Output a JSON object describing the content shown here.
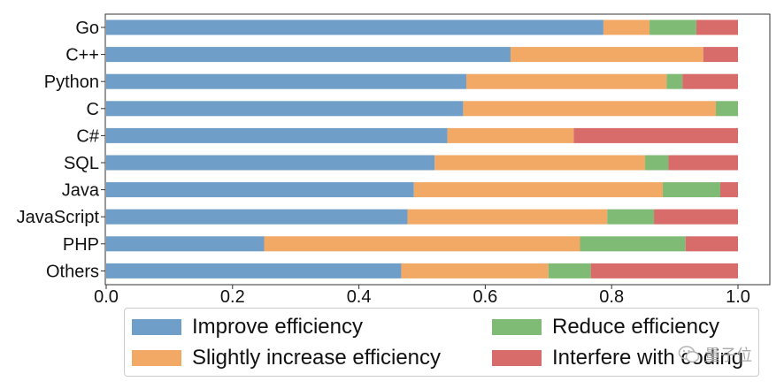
{
  "chart_data": {
    "type": "bar",
    "orientation": "horizontal",
    "stacked": true,
    "categories": [
      "Go",
      "C++",
      "Python",
      "C",
      "C#",
      "SQL",
      "Java",
      "JavaScript",
      "PHP",
      "Others"
    ],
    "series": [
      {
        "name": "Improve efficiency",
        "color": "#6f9ec9",
        "values": [
          0.787,
          0.64,
          0.57,
          0.565,
          0.54,
          0.52,
          0.487,
          0.477,
          0.25,
          0.467
        ]
      },
      {
        "name": "Slightly increase efficiency",
        "color": "#f2a965",
        "values": [
          0.073,
          0.305,
          0.317,
          0.4,
          0.2,
          0.333,
          0.394,
          0.316,
          0.5,
          0.233
        ]
      },
      {
        "name": "Reduce efficiency",
        "color": "#80bb75",
        "values": [
          0.074,
          0.0,
          0.025,
          0.035,
          0.0,
          0.037,
          0.091,
          0.074,
          0.167,
          0.067
        ]
      },
      {
        "name": "Interfere with coding",
        "color": "#d86c6b",
        "values": [
          0.066,
          0.055,
          0.088,
          0.0,
          0.26,
          0.11,
          0.028,
          0.133,
          0.083,
          0.233
        ]
      }
    ],
    "xticks": [
      "0.0",
      "0.2",
      "0.4",
      "0.6",
      "0.8",
      "1.0"
    ],
    "xlim": [
      0.0,
      1.0
    ],
    "title": "",
    "xlabel": "",
    "ylabel": "",
    "grid": false,
    "legend_position": "bottom"
  },
  "watermark": {
    "text": "量子位"
  }
}
